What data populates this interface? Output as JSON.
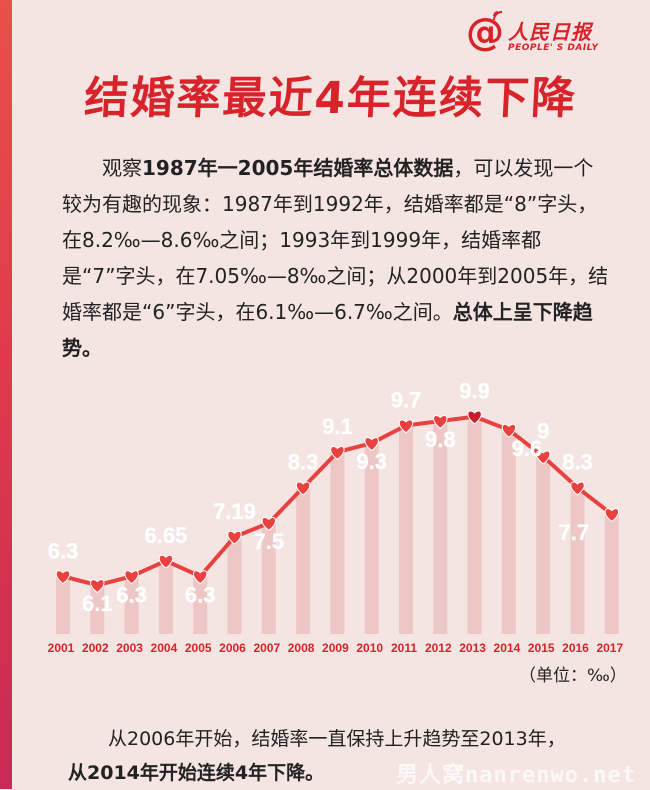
{
  "logo": {
    "at_symbol": "@",
    "name_cn": "人民日报",
    "name_en": "PEOPLE' S DAILY"
  },
  "title": "结婚率最近4年连续下降",
  "intro": {
    "p1": "观察",
    "p1_bold": "1987年一2005年结婚率总体数据",
    "p2": "，可以发现一个较为有趣的现象：1987年到1992年，结婚率都是“8”字头，在8.2‰—8.6‰之间；1993年到1999年，结婚率都是“7”字头，在7.05‰—8‰之间；从2000年到2005年，结婚率都是“6”字头，在6.1‰—6.7‰之间。",
    "p2_bold": "总体上呈下降趋势。"
  },
  "unit_label": "（单位：‰）",
  "outro": {
    "p1": "从2006年开始，结婚率一直保持上升趋势至2013年，",
    "p1_bold": "从2014年开始连续4年下降。"
  },
  "watermark": "男人窝nanrenwo.net",
  "colors": {
    "accent": "#d8232a",
    "line": "#e8413f",
    "bar": "#edc7c5",
    "background": "#f4e4e2",
    "label": "#ffffff"
  },
  "chart_data": {
    "type": "line",
    "title": "",
    "xlabel": "",
    "ylabel": "",
    "categories": [
      "2001",
      "2002",
      "2003",
      "2004",
      "2005",
      "2006",
      "2007",
      "2008",
      "2009",
      "2010",
      "2011",
      "2012",
      "2013",
      "2014",
      "2015",
      "2016",
      "2017"
    ],
    "values": [
      6.3,
      6.1,
      6.3,
      6.65,
      6.3,
      7.19,
      7.5,
      8.3,
      9.1,
      9.3,
      9.7,
      9.8,
      9.9,
      9.6,
      9.0,
      8.3,
      7.7
    ],
    "data_labels": [
      "6.3",
      "6.1",
      "6.3",
      "6.65",
      "6.3",
      "7.19",
      "7.5",
      "8.3",
      "9.1",
      "9.3",
      "9.7",
      "9.8",
      "9.9",
      "9.6",
      "9",
      "8.3",
      "7.7"
    ],
    "ylim": [
      5.0,
      10.5
    ],
    "grid": false,
    "legend": false
  }
}
